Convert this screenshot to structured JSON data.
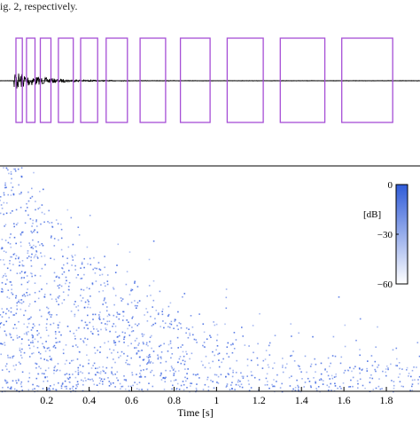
{
  "caption_fragment": "ig. 2, respectively.",
  "chart_data": [
    {
      "type": "line",
      "panel": "waveform",
      "description_visible": "decaying signal with overlaid rectangular time windows",
      "colors": {
        "signal": "#000000",
        "windows": "#a64fd6"
      },
      "windows": [
        [
          0.055,
          0.085
        ],
        [
          0.105,
          0.145
        ],
        [
          0.17,
          0.22
        ],
        [
          0.255,
          0.325
        ],
        [
          0.36,
          0.44
        ],
        [
          0.48,
          0.58
        ],
        [
          0.64,
          0.76
        ],
        [
          0.83,
          0.97
        ],
        [
          1.05,
          1.22
        ],
        [
          1.3,
          1.51
        ],
        [
          1.59,
          1.83
        ]
      ],
      "decay_time_constant_s": 0.12,
      "signal_amplitude": 1.0
    },
    {
      "type": "heatmap",
      "panel": "spectrogram",
      "xlabel": "Time [s]",
      "xticks": [
        "0.2",
        "0.4",
        "0.6",
        "0.8",
        "1",
        "1.2",
        "1.4",
        "1.6",
        "1.8"
      ],
      "xtick_values": [
        0.2,
        0.4,
        0.6,
        0.8,
        1.0,
        1.2,
        1.4,
        1.6,
        1.8
      ],
      "xlim": [
        0.05,
        1.9
      ],
      "colorbar": {
        "label": "[dB]",
        "ticks": [
          "0",
          "−30",
          "−60"
        ],
        "tick_values": [
          0,
          -30,
          -60
        ],
        "range": [
          -60,
          0
        ],
        "color_max": "#2f5bd8",
        "color_min": "#ffffff"
      },
      "colors": {
        "energy": "#3a63e0"
      }
    }
  ]
}
